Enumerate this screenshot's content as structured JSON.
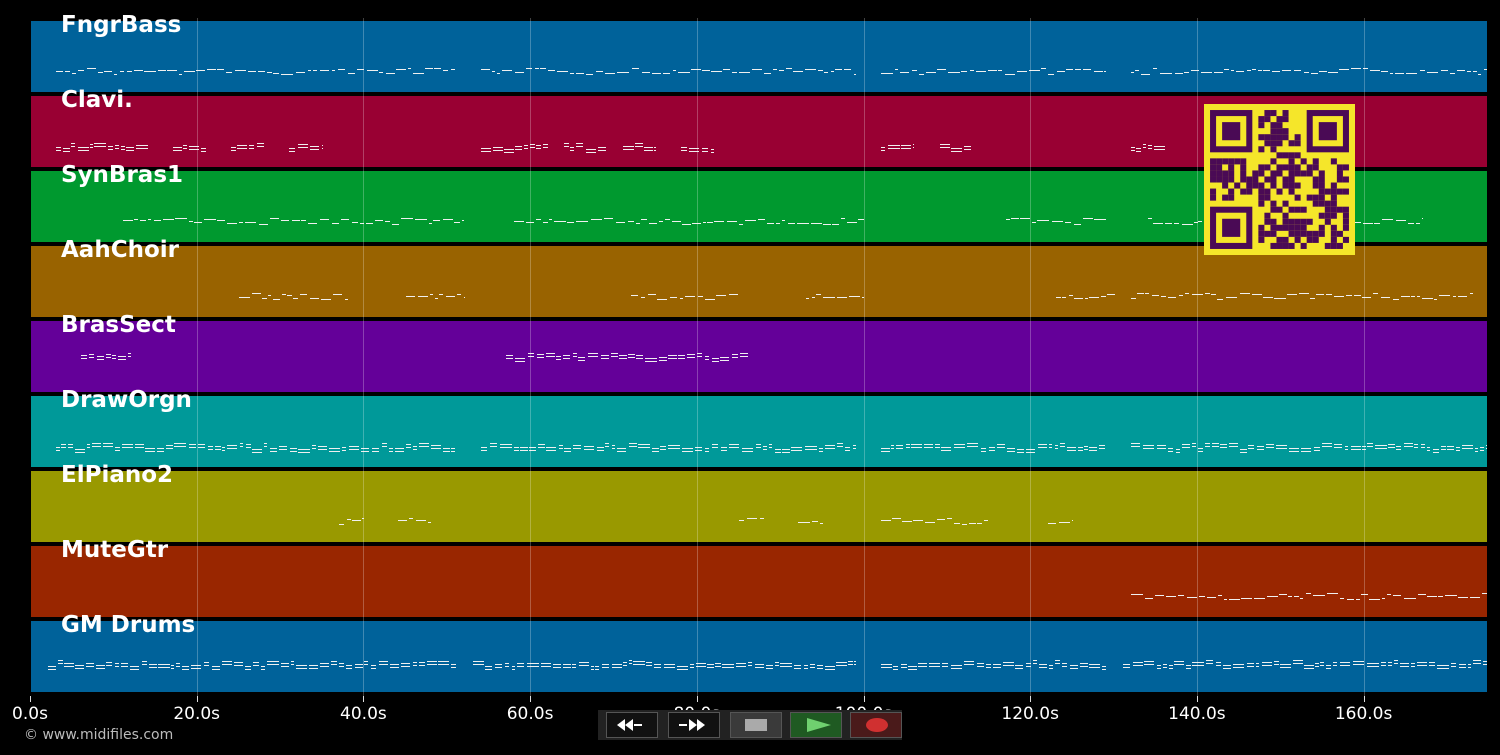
{
  "timeline": {
    "duration_s": 175,
    "tracks": [
      {
        "name": "FngrBass",
        "color": "#00629a"
      },
      {
        "name": "Clavi.",
        "color": "#990033"
      },
      {
        "name": "SynBras1",
        "color": "#00992f"
      },
      {
        "name": "AahChoir",
        "color": "#996300"
      },
      {
        "name": "BrasSect",
        "color": "#640099"
      },
      {
        "name": "DrawOrgn",
        "color": "#009999"
      },
      {
        "name": "ElPiano2",
        "color": "#999900"
      },
      {
        "name": "MuteGtr",
        "color": "#992600"
      },
      {
        "name": "GM Drums",
        "color": "#00629a"
      }
    ]
  },
  "axis": {
    "ticks": [
      "0.0s",
      "20.0s",
      "40.0s",
      "60.0s",
      "80.0s",
      "100.0s",
      "120.0s",
      "140.0s",
      "160.0s"
    ],
    "tick_values_s": [
      0,
      20,
      40,
      60,
      80,
      100,
      120,
      140,
      160
    ]
  },
  "footer": {
    "copyright": "© www.midifiles.com"
  },
  "transport": {
    "buttons": [
      {
        "name": "rewind",
        "icon": "rewind-icon"
      },
      {
        "name": "fast-forward",
        "icon": "fast-forward-icon"
      },
      {
        "name": "stop",
        "icon": "stop-icon"
      },
      {
        "name": "play",
        "icon": "play-icon"
      },
      {
        "name": "record",
        "icon": "record-icon"
      }
    ]
  },
  "overlay": {
    "qr_color": "#f5e62a",
    "qr_dark": "#4a0a55"
  }
}
